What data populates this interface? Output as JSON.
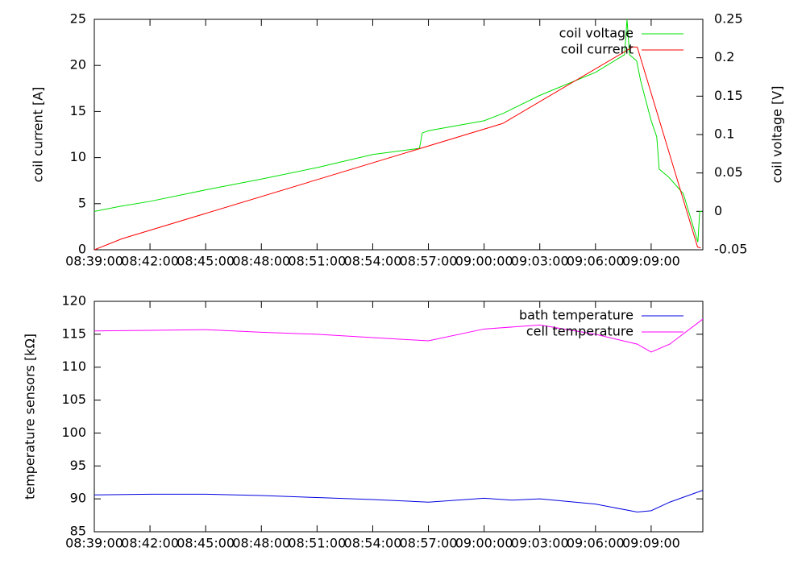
{
  "chart_data": [
    {
      "type": "line",
      "ylabel": "coil current [A]",
      "y2label": "coil voltage [V]",
      "xlim": [
        "08:39:00",
        "09:11:47"
      ],
      "xticks": [
        "08:39:00",
        "08:42:00",
        "08:45:00",
        "08:48:00",
        "08:51:00",
        "08:54:00",
        "08:57:00",
        "09:00:00",
        "09:03:00",
        "09:06:00",
        "09:09:00"
      ],
      "ylim": [
        0,
        25
      ],
      "yticks": [
        0,
        5,
        10,
        15,
        20,
        25
      ],
      "y2lim": [
        -0.05,
        0.25
      ],
      "y2ticks": [
        -0.05,
        0,
        0.05,
        0.1,
        0.15,
        0.2,
        0.25
      ],
      "legend": "upper right",
      "series": [
        {
          "name": "coil voltage",
          "color": "#00e000",
          "axis": "y2",
          "x": [
            "08:39:00",
            "08:40:30",
            "08:42:00",
            "08:45:00",
            "08:48:00",
            "08:51:00",
            "08:54:00",
            "08:56:31",
            "08:56:40",
            "08:57:00",
            "09:00:00",
            "09:01:04",
            "09:03:00",
            "09:06:00",
            "09:07:34",
            "09:07:42",
            "09:07:50",
            "09:08:13",
            "09:08:26",
            "09:09:00",
            "09:09:18",
            "09:09:26",
            "09:09:58",
            "09:10:44",
            "09:11:31",
            "09:11:37",
            "09:11:44"
          ],
          "values": [
            0.0,
            0.007,
            0.013,
            0.028,
            0.042,
            0.057,
            0.074,
            0.082,
            0.102,
            0.105,
            0.118,
            0.128,
            0.151,
            0.181,
            0.204,
            0.25,
            0.204,
            0.196,
            0.17,
            0.118,
            0.097,
            0.055,
            0.044,
            0.023,
            -0.04,
            0.0,
            0.0
          ]
        },
        {
          "name": "coil current",
          "color": "#ff0000",
          "axis": "y",
          "x": [
            "08:39:00",
            "08:40:30",
            "09:01:00",
            "09:08:00",
            "09:08:15",
            "09:11:30",
            "09:11:40"
          ],
          "values": [
            0,
            1.2,
            13.7,
            22.0,
            22.0,
            0.3,
            0.2
          ]
        }
      ]
    },
    {
      "type": "line",
      "ylabel": "temperature sensors [kΩ]",
      "xlim": [
        "08:39:00",
        "09:11:47"
      ],
      "xticks": [
        "08:39:00",
        "08:42:00",
        "08:45:00",
        "08:48:00",
        "08:51:00",
        "08:54:00",
        "08:57:00",
        "09:00:00",
        "09:03:00",
        "09:06:00",
        "09:09:00"
      ],
      "ylim": [
        85,
        120
      ],
      "yticks": [
        85,
        90,
        95,
        100,
        105,
        110,
        115,
        120
      ],
      "legend": "upper right",
      "series": [
        {
          "name": "bath temperature",
          "color": "#0000e0",
          "axis": "y",
          "x": [
            "08:39:00",
            "08:42:00",
            "08:45:00",
            "08:48:00",
            "08:51:00",
            "08:54:00",
            "08:57:00",
            "09:00:00",
            "09:01:30",
            "09:03:00",
            "09:06:00",
            "09:08:15",
            "09:09:00",
            "09:10:00",
            "09:11:47"
          ],
          "values": [
            90.6,
            90.7,
            90.7,
            90.5,
            90.2,
            89.9,
            89.5,
            90.1,
            89.8,
            90.0,
            89.2,
            88.0,
            88.2,
            89.5,
            91.3
          ]
        },
        {
          "name": "cell temperature",
          "color": "#ff00ff",
          "axis": "y",
          "x": [
            "08:39:00",
            "08:42:00",
            "08:45:00",
            "08:48:00",
            "08:51:00",
            "08:54:00",
            "08:57:00",
            "09:00:00",
            "09:03:00",
            "09:06:00",
            "09:08:15",
            "09:09:00",
            "09:10:00",
            "09:11:47"
          ],
          "values": [
            115.5,
            115.6,
            115.7,
            115.3,
            115.0,
            114.5,
            114.0,
            115.8,
            116.4,
            115.0,
            113.5,
            112.3,
            113.5,
            117.3
          ]
        }
      ]
    }
  ]
}
